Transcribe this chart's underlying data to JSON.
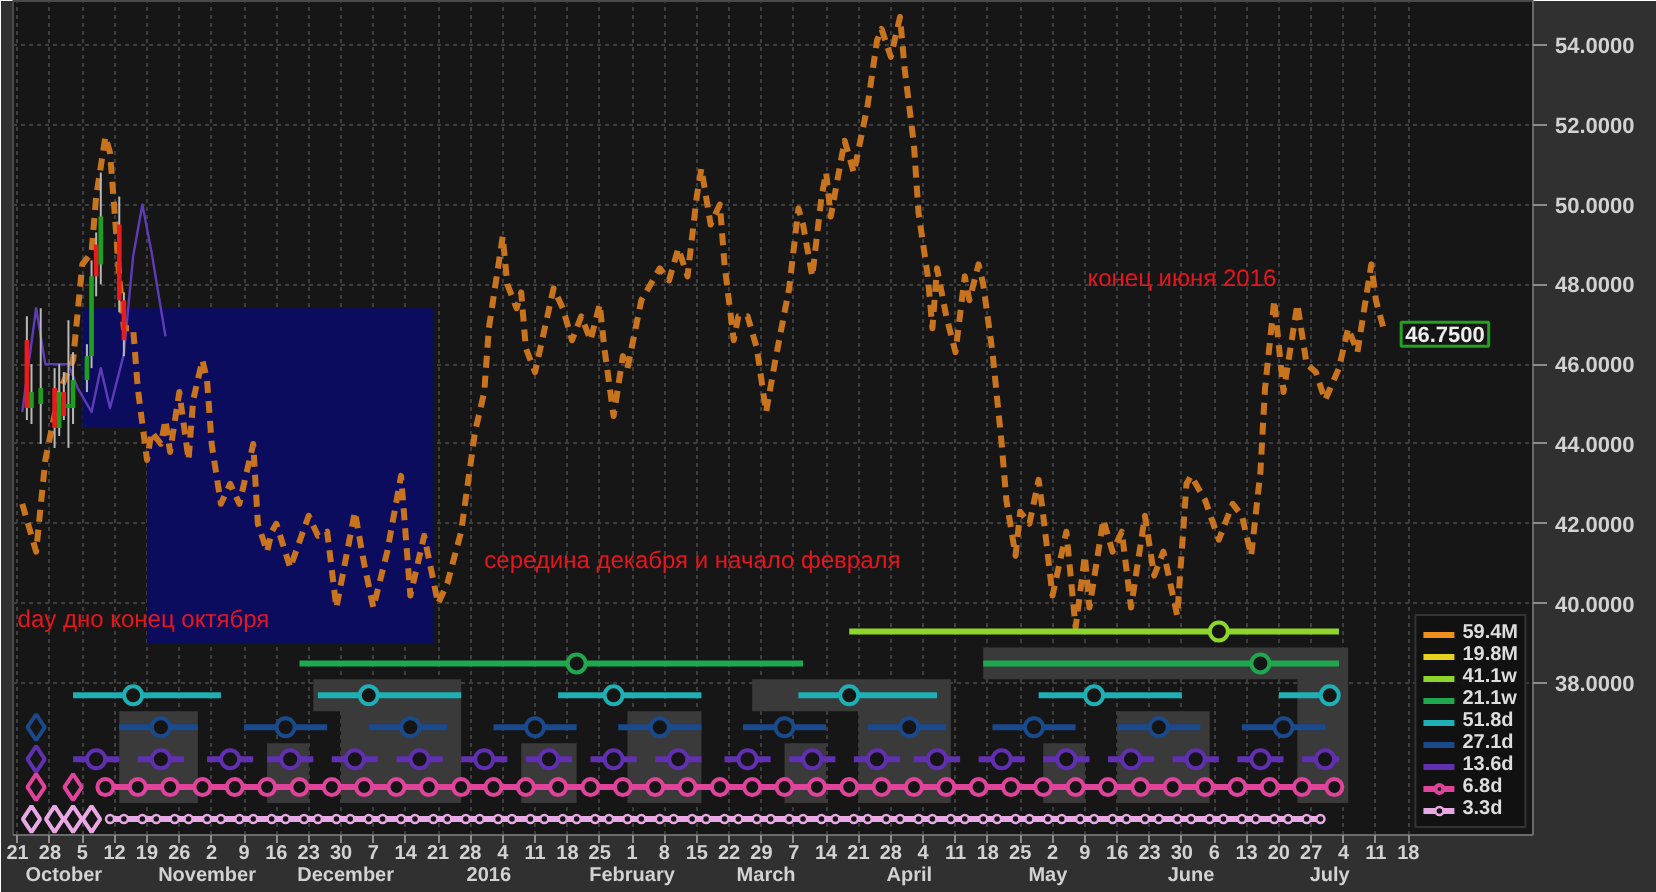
{
  "chart_data": {
    "type": "line",
    "xlim": [
      "2015-09-20",
      "2016-08-14"
    ],
    "ylim": [
      34.2,
      55.1
    ],
    "xticks": [
      {
        "value": "2015-09-21",
        "label": "21"
      },
      {
        "value": "2015-09-28",
        "label": "28"
      },
      {
        "value": "2015-10-05",
        "label": "5"
      },
      {
        "value": "2015-10-12",
        "label": "12"
      },
      {
        "value": "2015-10-19",
        "label": "19"
      },
      {
        "value": "2015-10-26",
        "label": "26"
      },
      {
        "value": "2015-11-02",
        "label": "2"
      },
      {
        "value": "2015-11-09",
        "label": "9"
      },
      {
        "value": "2015-11-16",
        "label": "16"
      },
      {
        "value": "2015-11-23",
        "label": "23"
      },
      {
        "value": "2015-11-30",
        "label": "30"
      },
      {
        "value": "2015-12-07",
        "label": "7"
      },
      {
        "value": "2015-12-14",
        "label": "14"
      },
      {
        "value": "2015-12-21",
        "label": "21"
      },
      {
        "value": "2015-12-28",
        "label": "28"
      },
      {
        "value": "2016-01-04",
        "label": "4"
      },
      {
        "value": "2016-01-11",
        "label": "11"
      },
      {
        "value": "2016-01-18",
        "label": "18"
      },
      {
        "value": "2016-01-25",
        "label": "25"
      },
      {
        "value": "2016-02-01",
        "label": "1"
      },
      {
        "value": "2016-02-08",
        "label": "8"
      },
      {
        "value": "2016-02-15",
        "label": "15"
      },
      {
        "value": "2016-02-22",
        "label": "22"
      },
      {
        "value": "2016-02-29",
        "label": "29"
      },
      {
        "value": "2016-03-07",
        "label": "7"
      },
      {
        "value": "2016-03-14",
        "label": "14"
      },
      {
        "value": "2016-03-21",
        "label": "21"
      },
      {
        "value": "2016-03-28",
        "label": "28"
      },
      {
        "value": "2016-04-04",
        "label": "4"
      },
      {
        "value": "2016-04-11",
        "label": "11"
      },
      {
        "value": "2016-04-18",
        "label": "18"
      },
      {
        "value": "2016-04-25",
        "label": "25"
      },
      {
        "value": "2016-05-02",
        "label": "2"
      },
      {
        "value": "2016-05-09",
        "label": "9"
      },
      {
        "value": "2016-05-16",
        "label": "16"
      },
      {
        "value": "2016-05-23",
        "label": "23"
      },
      {
        "value": "2016-05-30",
        "label": "30"
      },
      {
        "value": "2016-06-06",
        "label": "6"
      },
      {
        "value": "2016-06-13",
        "label": "13"
      },
      {
        "value": "2016-06-20",
        "label": "20"
      },
      {
        "value": "2016-06-27",
        "label": "27"
      },
      {
        "value": "2016-07-04",
        "label": "4"
      },
      {
        "value": "2016-07-11",
        "label": "11"
      },
      {
        "value": "2016-07-18",
        "label": "18"
      }
    ],
    "x2lim": [
      "2015-09-20",
      "2016-08-14"
    ],
    "x2ticks": [
      {
        "value": "2015-10-01",
        "label": "October"
      },
      {
        "value": "2015-11-01",
        "label": "November"
      },
      {
        "value": "2015-12-01",
        "label": "December"
      },
      {
        "value": "2016-01-01",
        "label": "2016"
      },
      {
        "value": "2016-02-01",
        "label": "February"
      },
      {
        "value": "2016-03-01",
        "label": "March"
      },
      {
        "value": "2016-04-01",
        "label": "April"
      },
      {
        "value": "2016-05-01",
        "label": "May"
      },
      {
        "value": "2016-06-01",
        "label": "June"
      },
      {
        "value": "2016-07-01",
        "label": "July"
      }
    ],
    "yticks": [
      {
        "value": 38,
        "label": "38.0000"
      },
      {
        "value": 40,
        "label": "40.0000"
      },
      {
        "value": 42,
        "label": "42.0000"
      },
      {
        "value": 44,
        "label": "44.0000"
      },
      {
        "value": 46,
        "label": "46.0000"
      },
      {
        "value": 48,
        "label": "48.0000"
      },
      {
        "value": 50,
        "label": "50.0000"
      },
      {
        "value": 52,
        "label": "52.0000"
      },
      {
        "value": 54,
        "label": "54.0000"
      }
    ],
    "grid": true,
    "legend": "bottom right",
    "annotations": [
      "day дно конец октября",
      "середина декабря и начало февраля",
      "конец июня 2016"
    ],
    "series": [
      {
        "type": "area",
        "color": "#0c0c5e",
        "x": [
          "2015-10-05",
          "2015-10-19",
          "2015-10-19",
          "2015-12-20"
        ],
        "values": [
          null,
          null,
          null,
          null
        ],
        "upper": [
          47.4,
          47.4,
          47.4,
          47.4
        ],
        "lower": [
          44.4,
          44.4,
          39.0,
          39.0
        ]
      },
      {
        "type": "area",
        "color": "#3a3a3a",
        "x": [
          "2015-11-24",
          "2015-11-30",
          "2015-11-30",
          "2015-12-26"
        ],
        "values": [
          null,
          null,
          null,
          null
        ],
        "upper": [
          38.1,
          38.1,
          38.1,
          38.1
        ],
        "lower": [
          37.3,
          37.3,
          35.0,
          35.0
        ]
      },
      {
        "type": "area",
        "color": "#3a3a3a",
        "x": [
          "2015-10-13",
          "2015-10-30"
        ],
        "values": [
          null,
          null
        ],
        "upper": [
          37.3,
          37.3
        ],
        "lower": [
          35.0,
          35.0
        ]
      },
      {
        "type": "area",
        "color": "#3a3a3a",
        "x": [
          "2016-01-31",
          "2016-02-16"
        ],
        "values": [
          null,
          null
        ],
        "upper": [
          37.3,
          37.3
        ],
        "lower": [
          35.0,
          35.0
        ]
      },
      {
        "type": "area",
        "color": "#3a3a3a",
        "x": [
          "2015-11-14",
          "2015-11-23"
        ],
        "values": [
          null,
          null
        ],
        "upper": [
          36.5,
          36.5
        ],
        "lower": [
          35.0,
          35.0
        ]
      },
      {
        "type": "area",
        "color": "#3a3a3a",
        "x": [
          "2016-01-08",
          "2016-01-20"
        ],
        "values": [
          null,
          null
        ],
        "upper": [
          36.5,
          36.5
        ],
        "lower": [
          35.0,
          35.0
        ]
      },
      {
        "type": "area",
        "color": "#3a3a3a",
        "x": [
          "2016-04-17",
          "2016-06-24",
          "2016-06-24",
          "2016-07-05"
        ],
        "values": [
          null,
          null,
          null,
          null
        ],
        "upper": [
          38.9,
          38.9,
          38.9,
          38.9
        ],
        "lower": [
          38.1,
          38.1,
          35.0,
          35.0
        ]
      },
      {
        "type": "area",
        "color": "#3a3a3a",
        "x": [
          "2016-02-27",
          "2016-03-21",
          "2016-03-21",
          "2016-04-10"
        ],
        "values": [
          null,
          null,
          null,
          null
        ],
        "upper": [
          38.1,
          38.1,
          38.1,
          38.1
        ],
        "lower": [
          37.3,
          37.3,
          35.0,
          35.0
        ]
      },
      {
        "type": "area",
        "color": "#3a3a3a",
        "x": [
          "2016-03-05",
          "2016-03-14"
        ],
        "values": [
          null,
          null
        ],
        "upper": [
          36.5,
          36.5
        ],
        "lower": [
          35.0,
          35.0
        ]
      },
      {
        "type": "area",
        "color": "#3a3a3a",
        "x": [
          "2016-04-30",
          "2016-05-09"
        ],
        "values": [
          null,
          null
        ],
        "upper": [
          36.5,
          36.5
        ],
        "lower": [
          35.0,
          35.0
        ]
      },
      {
        "type": "area",
        "color": "#3a3a3a",
        "x": [
          "2016-05-16",
          "2016-06-05"
        ],
        "values": [
          null,
          null
        ],
        "upper": [
          37.3,
          37.3
        ],
        "lower": [
          35.0,
          35.0
        ]
      },
      {
        "type": "line",
        "color": "#5e3cb8",
        "x": [
          "2015-09-22",
          "2015-09-25",
          "2015-09-27",
          "2015-10-02",
          "2015-10-04",
          "2015-10-07",
          "2015-10-09",
          "2015-10-11",
          "2015-10-14",
          "2015-10-16",
          "2015-10-18",
          "2015-10-20",
          "2015-10-23"
        ],
        "values": [
          44.8,
          47.4,
          46.0,
          46.0,
          45.4,
          44.8,
          45.9,
          44.9,
          46.25,
          48.7,
          50.0,
          48.8,
          46.7
        ]
      },
      {
        "color": "#c8731e",
        "line_style": "dashed",
        "x": [
          "2015-09-22",
          "2015-09-25",
          "2015-09-27",
          "2015-09-30",
          "2015-10-03",
          "2015-10-05",
          "2015-10-07",
          "2015-10-08",
          "2015-10-10",
          "2015-10-11",
          "2015-10-12",
          "2015-10-13",
          "2015-10-14",
          "2015-10-16",
          "2015-10-17",
          "2015-10-19",
          "2015-10-20",
          "2015-10-22",
          "2015-10-23",
          "2015-10-24",
          "2015-10-26",
          "2015-10-28",
          "2015-10-29",
          "2015-10-31",
          "2015-11-01",
          "2015-11-02",
          "2015-11-04",
          "2015-11-06",
          "2015-11-08",
          "2015-11-10",
          "2015-11-11",
          "2015-11-12",
          "2015-11-14",
          "2015-11-15",
          "2015-11-16",
          "2015-11-19",
          "2015-11-23",
          "2015-11-25",
          "2015-11-27",
          "2015-11-29",
          "2015-12-03",
          "2015-12-05",
          "2015-12-07",
          "2015-12-10",
          "2015-12-13",
          "2015-12-15",
          "2015-12-18",
          "2015-12-21",
          "2015-12-23",
          "2015-12-26",
          "2015-12-29",
          "2015-12-31",
          "2016-01-01",
          "2016-01-04",
          "2016-01-05",
          "2016-01-07",
          "2016-01-08",
          "2016-01-09",
          "2016-01-11",
          "2016-01-15",
          "2016-01-17",
          "2016-01-19",
          "2016-01-21",
          "2016-01-23",
          "2016-01-25",
          "2016-01-26",
          "2016-01-28",
          "2016-01-30",
          "2016-01-31",
          "2016-02-03",
          "2016-02-07",
          "2016-02-09",
          "2016-02-11",
          "2016-02-13",
          "2016-02-15",
          "2016-02-16",
          "2016-02-17",
          "2016-02-18",
          "2016-02-20",
          "2016-02-21",
          "2016-02-23",
          "2016-02-24",
          "2016-02-26",
          "2016-02-28",
          "2016-03-01",
          "2016-03-03",
          "2016-03-06",
          "2016-03-08",
          "2016-03-09",
          "2016-03-11",
          "2016-03-13",
          "2016-03-14",
          "2016-03-15",
          "2016-03-18",
          "2016-03-19",
          "2016-03-20",
          "2016-03-23",
          "2016-03-25",
          "2016-03-26",
          "2016-03-28",
          "2016-03-30",
          "2016-03-31",
          "2016-04-02",
          "2016-04-03",
          "2016-04-05",
          "2016-04-06",
          "2016-04-07",
          "2016-04-09",
          "2016-04-11",
          "2016-04-13",
          "2016-04-14",
          "2016-04-16",
          "2016-04-17",
          "2016-04-19",
          "2016-04-21",
          "2016-04-22",
          "2016-04-24",
          "2016-04-25",
          "2016-04-27",
          "2016-04-29",
          "2016-04-30",
          "2016-05-02",
          "2016-05-05",
          "2016-05-07",
          "2016-05-09",
          "2016-05-10",
          "2016-05-13",
          "2016-05-15",
          "2016-05-17",
          "2016-05-19",
          "2016-05-22",
          "2016-05-24",
          "2016-05-26",
          "2016-05-29",
          "2016-05-31",
          "2016-06-01",
          "2016-06-04",
          "2016-06-07",
          "2016-06-10",
          "2016-06-12",
          "2016-06-14",
          "2016-06-16",
          "2016-06-17",
          "2016-06-19",
          "2016-06-21",
          "2016-06-24",
          "2016-06-26",
          "2016-06-28",
          "2016-06-30",
          "2016-07-03",
          "2016-07-05",
          "2016-07-07",
          "2016-07-10",
          "2016-07-11",
          "2016-07-13"
        ],
        "values": [
          42.5,
          41.3,
          43.6,
          45.3,
          46.1,
          48.5,
          48.8,
          50.2,
          51.7,
          51.3,
          49.8,
          48.2,
          46.9,
          46.9,
          45.4,
          43.6,
          44.3,
          44.0,
          44.6,
          43.8,
          45.3,
          43.6,
          45.1,
          46.1,
          45.6,
          44.0,
          42.5,
          43.0,
          42.5,
          43.5,
          44.0,
          42.0,
          41.3,
          41.8,
          42.0,
          40.9,
          42.2,
          41.7,
          41.8,
          39.9,
          42.3,
          41.0,
          39.9,
          41.3,
          43.2,
          40.2,
          41.7,
          40.0,
          40.5,
          41.8,
          44.3,
          45.3,
          46.9,
          49.2,
          48.0,
          47.4,
          47.8,
          46.4,
          45.8,
          47.9,
          47.4,
          46.6,
          47.2,
          46.6,
          47.5,
          46.4,
          44.7,
          46.2,
          45.9,
          47.6,
          48.4,
          48.1,
          48.9,
          48.2,
          50.2,
          50.9,
          50.2,
          49.5,
          50.0,
          48.5,
          46.6,
          47.2,
          47.2,
          46.4,
          44.8,
          46.1,
          47.9,
          49.9,
          49.5,
          48.2,
          50.2,
          50.8,
          49.7,
          51.6,
          51.2,
          50.8,
          52.5,
          54.1,
          54.4,
          53.7,
          54.7,
          53.4,
          51.5,
          49.8,
          48.2,
          46.9,
          48.4,
          47.2,
          46.3,
          48.2,
          47.6,
          48.5,
          48.0,
          46.3,
          44.0,
          42.6,
          41.2,
          42.3,
          42.0,
          43.1,
          42.2,
          40.2,
          41.8,
          39.4,
          41.2,
          39.9,
          42.1,
          41.3,
          41.8,
          39.9,
          42.2,
          40.7,
          41.3,
          39.7,
          43.0,
          43.2,
          42.6,
          41.6,
          42.5,
          42.2,
          41.2,
          43.3,
          45.4,
          47.6,
          45.3,
          47.5,
          46.0,
          45.8,
          45.1,
          45.9,
          46.9,
          46.3,
          48.5,
          47.6,
          46.75
        ],
        "value_labels": [
          null,
          null,
          null,
          null,
          null,
          null,
          null,
          null,
          null,
          null,
          null,
          null,
          null,
          null,
          null,
          null,
          null,
          null,
          null,
          null,
          null,
          null,
          null,
          null,
          null,
          null,
          null,
          null,
          null,
          null,
          null,
          null,
          null,
          null,
          null,
          null,
          null,
          null,
          null,
          null,
          null,
          null,
          null,
          null,
          null,
          null,
          null,
          null,
          null,
          null,
          null,
          null,
          null,
          null,
          null,
          null,
          null,
          null,
          null,
          null,
          null,
          null,
          null,
          null,
          null,
          null,
          null,
          null,
          null,
          null,
          null,
          null,
          null,
          null,
          null,
          null,
          null,
          null,
          null,
          null,
          null,
          null,
          null,
          null,
          null,
          null,
          null,
          null,
          null,
          null,
          null,
          null,
          null,
          null,
          null,
          null,
          null,
          null,
          null,
          null,
          null,
          null,
          null,
          null,
          null,
          null,
          null,
          null,
          null,
          null,
          null,
          null,
          null,
          null,
          null,
          null,
          null,
          null,
          null,
          null,
          null,
          null,
          null,
          null,
          null,
          null,
          null,
          null,
          null,
          null,
          null,
          null,
          null,
          null,
          null,
          null,
          null,
          null,
          null,
          null,
          null,
          null,
          null,
          null,
          null,
          null,
          null,
          null,
          null,
          null,
          null,
          null,
          null,
          null,
          "46.7500"
        ]
      },
      {
        "name": "59.4M",
        "color": "#f0901e"
      },
      {
        "name": "19.8M",
        "color": "#e6d21e"
      },
      {
        "name": "41.1w",
        "color": "#8ed62a",
        "type": "line",
        "x": [
          "2016-03-19",
          "2016-07-03"
        ],
        "values": [
          39.3,
          39.3
        ]
      },
      {
        "type": "scatter",
        "marker": "circle",
        "color": "#8ed62a",
        "x": [
          "2016-06-07"
        ],
        "values": [
          39.3
        ]
      },
      {
        "name": "21.1w",
        "color": "#1fa84f",
        "type": "line",
        "x": [
          "2015-11-21",
          "2016-03-09",
          "2016-03-10",
          "2016-04-17",
          "2016-07-03"
        ],
        "values": [
          38.5,
          38.5,
          null,
          38.5,
          38.5
        ]
      },
      {
        "type": "scatter",
        "marker": "circle",
        "color": "#1fa84f",
        "x": [
          "2016-01-20",
          "2016-06-16"
        ],
        "values": [
          38.5,
          38.5
        ]
      },
      {
        "name": "51.8d",
        "color": "#1eb0b4",
        "type": "line",
        "x": [
          "2015-10-03",
          "2015-11-04",
          "2015-11-05",
          "2015-11-25",
          "2015-12-26",
          "2015-12-27",
          "2016-01-16",
          "2016-02-16",
          "2016-02-17",
          "2016-03-08",
          "2016-04-07",
          "2016-04-08",
          "2016-04-29",
          "2016-05-30",
          "2016-05-31",
          "2016-06-20",
          "2016-07-03"
        ],
        "values": [
          37.7,
          37.7,
          null,
          37.7,
          37.7,
          null,
          37.7,
          37.7,
          null,
          37.7,
          37.7,
          null,
          37.7,
          37.7,
          null,
          37.7,
          37.7
        ]
      },
      {
        "type": "scatter",
        "marker": "circle",
        "color": "#1eb0b4",
        "x": [
          "2015-10-16",
          "2015-12-06",
          "2016-01-28",
          "2016-03-19",
          "2016-05-11",
          "2016-07-01"
        ],
        "values": [
          37.7,
          37.7,
          37.7,
          37.7,
          37.7,
          37.7
        ]
      },
      {
        "name": "27.1d",
        "color": "#1a4a8c",
        "type": "line",
        "x": [
          "2015-10-13",
          "2015-10-30",
          "2015-10-31",
          "2015-11-09",
          "2015-11-27",
          "2015-11-28",
          "2015-12-06",
          "2015-12-23",
          "2015-12-24",
          "2016-01-02",
          "2016-01-20",
          "2016-01-21",
          "2016-01-29",
          "2016-02-16",
          "2016-02-17",
          "2016-02-25",
          "2016-03-14",
          "2016-03-15",
          "2016-03-23",
          "2016-04-09",
          "2016-04-10",
          "2016-04-19",
          "2016-05-07",
          "2016-05-08",
          "2016-05-16",
          "2016-06-03",
          "2016-06-04",
          "2016-06-12",
          "2016-06-30"
        ],
        "values": [
          36.9,
          36.9,
          null,
          36.9,
          36.9,
          null,
          36.9,
          36.9,
          null,
          36.9,
          36.9,
          null,
          36.9,
          36.9,
          null,
          36.9,
          36.9,
          null,
          36.9,
          36.9,
          null,
          36.9,
          36.9,
          null,
          36.9,
          36.9,
          null,
          36.9,
          36.9
        ]
      },
      {
        "type": "scatter",
        "marker": "circle",
        "color": "#1a4a8c",
        "x": [
          "2015-10-22",
          "2015-11-18",
          "2015-12-15",
          "2016-01-11",
          "2016-02-07",
          "2016-03-05",
          "2016-04-01",
          "2016-04-28",
          "2016-05-25",
          "2016-06-21"
        ],
        "values": [
          36.9,
          36.9,
          36.9,
          36.9,
          36.9,
          36.9,
          36.9,
          36.9,
          36.9,
          36.9
        ]
      },
      {
        "name": "13.6d",
        "color": "#6030b0",
        "type": "line",
        "x": [
          "2015-10-03",
          "2015-10-13",
          "2015-10-14",
          "2015-10-17",
          "2015-10-27",
          "2015-10-28",
          "2015-11-01",
          "2015-11-11",
          "2015-11-12",
          "2015-11-14",
          "2015-11-24",
          "2015-11-25",
          "2015-11-28",
          "2015-12-08",
          "2015-12-09",
          "2015-12-12",
          "2015-12-22",
          "2015-12-23",
          "2015-12-26",
          "2016-01-05",
          "2016-01-06",
          "2016-01-09",
          "2016-01-19",
          "2016-01-20",
          "2016-01-23",
          "2016-02-02",
          "2016-02-03",
          "2016-02-06",
          "2016-02-16",
          "2016-02-17",
          "2016-02-21",
          "2016-03-02",
          "2016-03-03",
          "2016-03-06",
          "2016-03-16",
          "2016-03-17",
          "2016-03-20",
          "2016-03-30",
          "2016-03-31",
          "2016-04-02",
          "2016-04-12",
          "2016-04-13",
          "2016-04-16",
          "2016-04-26",
          "2016-04-27",
          "2016-04-30",
          "2016-05-10",
          "2016-05-11",
          "2016-05-14",
          "2016-05-24",
          "2016-05-25",
          "2016-05-28",
          "2016-06-07",
          "2016-06-08",
          "2016-06-11",
          "2016-06-21",
          "2016-06-22",
          "2016-06-25",
          "2016-07-03"
        ],
        "values": [
          36.1,
          36.1,
          null,
          36.1,
          36.1,
          null,
          36.1,
          36.1,
          null,
          36.1,
          36.1,
          null,
          36.1,
          36.1,
          null,
          36.1,
          36.1,
          null,
          36.1,
          36.1,
          null,
          36.1,
          36.1,
          null,
          36.1,
          36.1,
          null,
          36.1,
          36.1,
          null,
          36.1,
          36.1,
          null,
          36.1,
          36.1,
          null,
          36.1,
          36.1,
          null,
          36.1,
          36.1,
          null,
          36.1,
          36.1,
          null,
          36.1,
          36.1,
          null,
          36.1,
          36.1,
          null,
          36.1,
          36.1,
          null,
          36.1,
          36.1,
          null,
          36.1,
          36.1
        ]
      },
      {
        "type": "scatter",
        "marker": "circle",
        "color": "#6030b0",
        "x": [
          "2015-10-08",
          "2015-10-22",
          "2015-11-06",
          "2015-11-19",
          "2015-12-03",
          "2015-12-17",
          "2015-12-31",
          "2016-01-14",
          "2016-01-28",
          "2016-02-11",
          "2016-02-26",
          "2016-03-11",
          "2016-03-25",
          "2016-04-07",
          "2016-04-21",
          "2016-05-05",
          "2016-05-19",
          "2016-06-02",
          "2016-06-16",
          "2016-06-30"
        ],
        "values": [
          36.1,
          36.1,
          36.1,
          36.1,
          36.1,
          36.1,
          36.1,
          36.1,
          36.1,
          36.1,
          36.1,
          36.1,
          36.1,
          36.1,
          36.1,
          36.1,
          36.1,
          36.1,
          36.1,
          36.1
        ]
      },
      {
        "name": "6.8d",
        "color": "#e0449a",
        "type": "line",
        "marker": "circle",
        "x": [
          "2015-10-10",
          "2015-10-17",
          "2015-10-24",
          "2015-10-31",
          "2015-11-07",
          "2015-11-14",
          "2015-11-21",
          "2015-11-28",
          "2015-12-05",
          "2015-12-12",
          "2015-12-19",
          "2015-12-26",
          "2016-01-02",
          "2016-01-09",
          "2016-01-16",
          "2016-01-23",
          "2016-01-30",
          "2016-02-06",
          "2016-02-13",
          "2016-02-20",
          "2016-02-27",
          "2016-03-05",
          "2016-03-12",
          "2016-03-19",
          "2016-03-26",
          "2016-04-02",
          "2016-04-09",
          "2016-04-16",
          "2016-04-23",
          "2016-04-30",
          "2016-05-07",
          "2016-05-14",
          "2016-05-21",
          "2016-05-28",
          "2016-06-04",
          "2016-06-11",
          "2016-06-18",
          "2016-06-25",
          "2016-07-02"
        ],
        "values": [
          35.4,
          35.4,
          35.4,
          35.4,
          35.4,
          35.4,
          35.4,
          35.4,
          35.4,
          35.4,
          35.4,
          35.4,
          35.4,
          35.4,
          35.4,
          35.4,
          35.4,
          35.4,
          35.4,
          35.4,
          35.4,
          35.4,
          35.4,
          35.4,
          35.4,
          35.4,
          35.4,
          35.4,
          35.4,
          35.4,
          35.4,
          35.4,
          35.4,
          35.4,
          35.4,
          35.4,
          35.4,
          35.4,
          35.4
        ]
      },
      {
        "name": "3.3d",
        "color": "#e8a8e4",
        "type": "line",
        "marker": "circle",
        "x": [
          "2015-10-11",
          "2015-10-14",
          "2015-10-18",
          "2015-10-21",
          "2015-10-25",
          "2015-10-28",
          "2015-11-01",
          "2015-11-04",
          "2015-11-08",
          "2015-11-11",
          "2015-11-15",
          "2015-11-18",
          "2015-11-22",
          "2015-11-25",
          "2015-11-29",
          "2015-12-02",
          "2015-12-06",
          "2015-12-09",
          "2015-12-13",
          "2015-12-16",
          "2015-12-20",
          "2015-12-23",
          "2015-12-27",
          "2015-12-30",
          "2016-01-03",
          "2016-01-06",
          "2016-01-10",
          "2016-01-13",
          "2016-01-17",
          "2016-01-20",
          "2016-01-24",
          "2016-01-27",
          "2016-01-31",
          "2016-02-03",
          "2016-02-07",
          "2016-02-10",
          "2016-02-14",
          "2016-02-17",
          "2016-02-21",
          "2016-02-24",
          "2016-02-28",
          "2016-03-02",
          "2016-03-06",
          "2016-03-09",
          "2016-03-13",
          "2016-03-16",
          "2016-03-20",
          "2016-03-23",
          "2016-03-27",
          "2016-03-30",
          "2016-04-03",
          "2016-04-06",
          "2016-04-10",
          "2016-04-13",
          "2016-04-17",
          "2016-04-20",
          "2016-04-24",
          "2016-04-27",
          "2016-05-01",
          "2016-05-04",
          "2016-05-08",
          "2016-05-11",
          "2016-05-15",
          "2016-05-18",
          "2016-05-22",
          "2016-05-25",
          "2016-05-29",
          "2016-06-01",
          "2016-06-05",
          "2016-06-08",
          "2016-06-12",
          "2016-06-15",
          "2016-06-19",
          "2016-06-22",
          "2016-06-26",
          "2016-06-29"
        ],
        "values": [
          34.6,
          34.6,
          34.6,
          34.6,
          34.6,
          34.6,
          34.6,
          34.6,
          34.6,
          34.6,
          34.6,
          34.6,
          34.6,
          34.6,
          34.6,
          34.6,
          34.6,
          34.6,
          34.6,
          34.6,
          34.6,
          34.6,
          34.6,
          34.6,
          34.6,
          34.6,
          34.6,
          34.6,
          34.6,
          34.6,
          34.6,
          34.6,
          34.6,
          34.6,
          34.6,
          34.6,
          34.6,
          34.6,
          34.6,
          34.6,
          34.6,
          34.6,
          34.6,
          34.6,
          34.6,
          34.6,
          34.6,
          34.6,
          34.6,
          34.6,
          34.6,
          34.6,
          34.6,
          34.6,
          34.6,
          34.6,
          34.6,
          34.6,
          34.6,
          34.6,
          34.6,
          34.6,
          34.6,
          34.6,
          34.6,
          34.6,
          34.6,
          34.6,
          34.6,
          34.6,
          34.6,
          34.6,
          34.6,
          34.6,
          34.6,
          34.6
        ]
      },
      {
        "type": "scatter",
        "marker": "diamond",
        "color": "#1a4a8c",
        "x": [
          "2015-09-25"
        ],
        "values": [
          36.9
        ]
      },
      {
        "type": "scatter",
        "marker": "diamond",
        "color": "#6030b0",
        "x": [
          "2015-09-25"
        ],
        "values": [
          36.1
        ]
      },
      {
        "type": "scatter",
        "marker": "diamond",
        "color": "#e0449a",
        "x": [
          "2015-09-25",
          "2015-10-03"
        ],
        "values": [
          35.4,
          35.4
        ]
      },
      {
        "type": "scatter",
        "marker": "diamond",
        "color": "#e8a8e4",
        "x": [
          "2015-09-24",
          "2015-09-29",
          "2015-10-03",
          "2015-10-07"
        ],
        "values": [
          34.6,
          34.6,
          34.6,
          34.6
        ]
      },
      {
        "type": "candlestick",
        "x": [
          "2015-09-23",
          "2015-09-24",
          "2015-09-26",
          "2015-09-29",
          "2015-09-30",
          "2015-10-01",
          "2015-10-02",
          "2015-10-03",
          "2015-10-06",
          "2015-10-07",
          "2015-10-08",
          "2015-10-09",
          "2015-10-13",
          "2015-10-14"
        ],
        "ohlc": [
          [
            46.6,
            47.2,
            44.6,
            44.9
          ],
          [
            44.9,
            46.0,
            44.5,
            45.3
          ],
          [
            45.0,
            47.4,
            44.0,
            45.4
          ],
          [
            45.4,
            45.9,
            43.9,
            44.4
          ],
          [
            44.4,
            46.0,
            44.2,
            45.3
          ],
          [
            45.3,
            45.8,
            44.6,
            44.7
          ],
          [
            44.9,
            47.1,
            43.9,
            45.0
          ],
          [
            44.9,
            46.3,
            44.5,
            45.6
          ],
          [
            45.6,
            46.5,
            45.3,
            46.2
          ],
          [
            46.2,
            48.6,
            45.9,
            48.2
          ],
          [
            49.0,
            49.3,
            47.7,
            48.2
          ],
          [
            48.5,
            50.8,
            48.0,
            49.7
          ],
          [
            49.5,
            50.2,
            47.3,
            47.6
          ],
          [
            47.6,
            47.8,
            46.2,
            46.6
          ]
        ],
        "colors": [
          "#e81c1c",
          "#1ea01e",
          "#1ea01e",
          "#e81c1c",
          "#1ea01e",
          "#e81c1c",
          "#1ea01e",
          "#1ea01e",
          "#1ea01e",
          "#1ea01e",
          "#e81c1c",
          "#1ea01e",
          "#e81c1c",
          "#e81c1c"
        ]
      }
    ]
  }
}
